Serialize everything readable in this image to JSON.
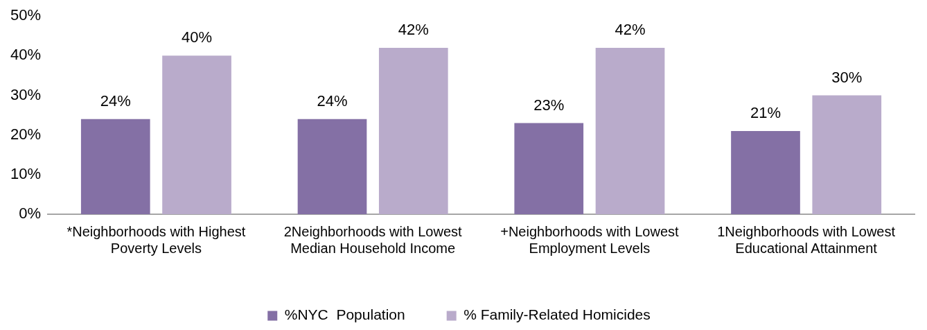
{
  "chart_data": {
    "type": "bar",
    "categories": [
      "*Neighborhoods with Highest Poverty Levels",
      "2Neighborhoods with Lowest Median Household Income",
      "+Neighborhoods with Lowest Employment Levels",
      "1Neighborhoods with Lowest Educational Attainment"
    ],
    "series": [
      {
        "name": "%NYC  Population",
        "color": "#8470a5",
        "values": [
          24,
          24,
          23,
          21
        ],
        "value_labels": [
          "24%",
          "24%",
          "23%",
          "21%"
        ]
      },
      {
        "name": "% Family-Related Homicides",
        "color": "#b9abcb",
        "values": [
          40,
          42,
          42,
          30
        ],
        "value_labels": [
          "40%",
          "42%",
          "42%",
          "30%"
        ]
      }
    ],
    "ylim": [
      0,
      50
    ],
    "yticks": [
      {
        "value": 0,
        "label": "0%"
      },
      {
        "value": 10,
        "label": "10%"
      },
      {
        "value": 20,
        "label": "20%"
      },
      {
        "value": 30,
        "label": "30%"
      },
      {
        "value": 40,
        "label": "40%"
      },
      {
        "value": 50,
        "label": "50%"
      }
    ],
    "grid": false,
    "legend": "bottom"
  }
}
